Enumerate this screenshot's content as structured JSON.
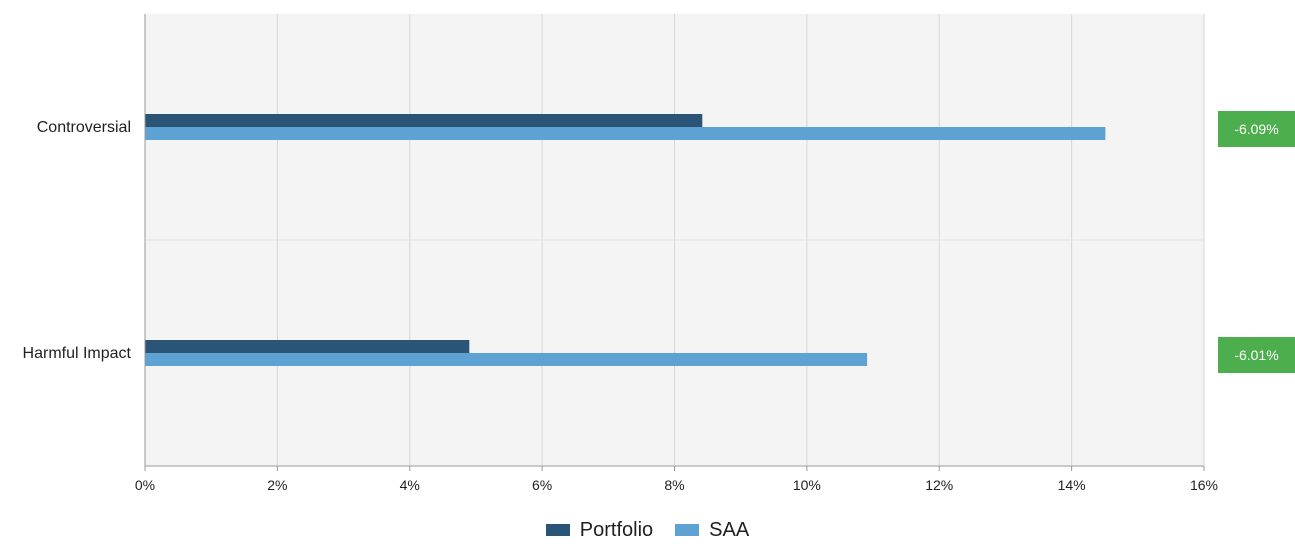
{
  "chart_data": {
    "type": "bar",
    "orientation": "horizontal",
    "categories": [
      "Controversial",
      "Harmful Impact"
    ],
    "series": [
      {
        "name": "Portfolio",
        "color": "#2b5577",
        "values": [
          8.42,
          4.9
        ]
      },
      {
        "name": "SAA",
        "color": "#5ea2d4",
        "values": [
          14.51,
          10.91
        ]
      }
    ],
    "x_ticks": [
      "0%",
      "2%",
      "4%",
      "6%",
      "8%",
      "10%",
      "12%",
      "14%",
      "16%"
    ],
    "xlim": [
      0,
      16
    ],
    "grid": true,
    "legend_position": "bottom",
    "annotations": [
      {
        "category": "Controversial",
        "label": "-6.09%",
        "color": "#4cae4c"
      },
      {
        "category": "Harmful Impact",
        "label": "-6.01%",
        "color": "#4cae4c"
      }
    ]
  }
}
